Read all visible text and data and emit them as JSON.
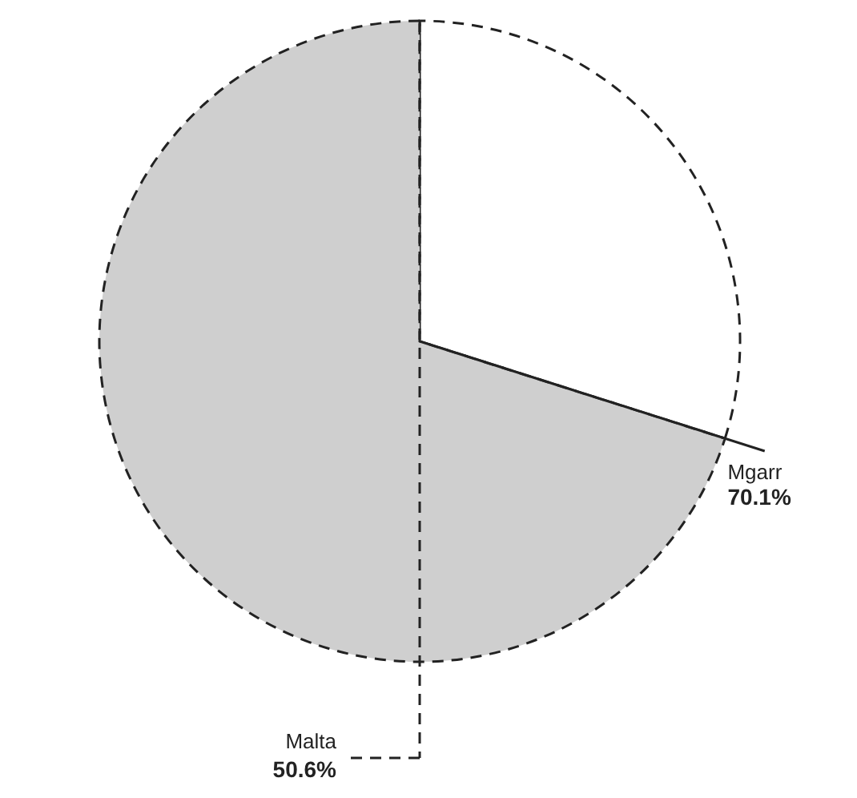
{
  "chart_data": {
    "type": "pie",
    "categories": [
      null,
      "Mgarr"
    ],
    "values": [
      29.9,
      70.1
    ],
    "colors": [
      "#ffffff",
      "#cfcfcf"
    ],
    "value_labels": [
      null,
      "70.1%"
    ],
    "annotations": [
      "Malta\n50.6%"
    ]
  }
}
